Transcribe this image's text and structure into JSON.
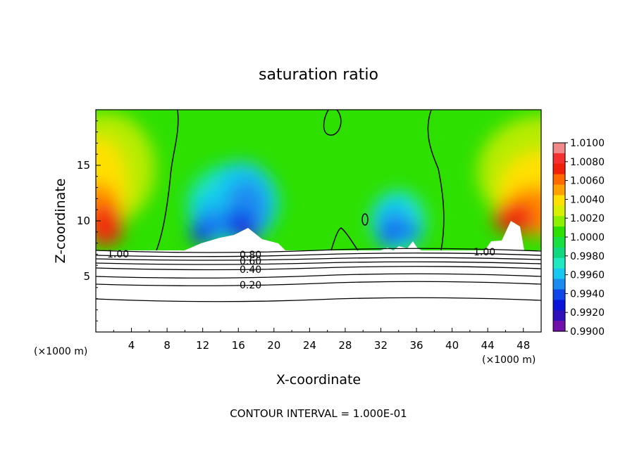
{
  "chart_data": {
    "type": "heatmap",
    "title": "saturation ratio",
    "xlabel": "X-coordinate",
    "ylabel": "Z-coordinate",
    "x_unit": "(×1000 m)",
    "y_unit": "(×1000 m)",
    "xlim": [
      0,
      50
    ],
    "ylim": [
      0,
      20
    ],
    "xticks": [
      "4",
      "8",
      "12",
      "16",
      "20",
      "24",
      "28",
      "32",
      "36",
      "40",
      "44",
      "48"
    ],
    "yticks": [
      "5",
      "10",
      "15"
    ],
    "colorbar": {
      "ticks": [
        "1.0100",
        "1.0080",
        "1.0060",
        "1.0040",
        "1.0020",
        "1.0000",
        "0.9980",
        "0.9960",
        "0.9940",
        "0.9920",
        "0.9900"
      ],
      "colors": [
        "#f08a8a",
        "#f53030",
        "#f0200a",
        "#ff6a00",
        "#ffa200",
        "#ffe000",
        "#d8f000",
        "#8cf000",
        "#2ee000",
        "#18e040",
        "#10d880",
        "#20e8c0",
        "#18c8f0",
        "#1a8cf0",
        "#1045e8",
        "#0a14d8",
        "#3010b8",
        "#7010a8"
      ]
    },
    "contour_labels": [
      "1.00",
      "0.80",
      "0.60",
      "0.40",
      "0.20"
    ],
    "footer": "CONTOUR INTERVAL = 1.000E-01"
  }
}
